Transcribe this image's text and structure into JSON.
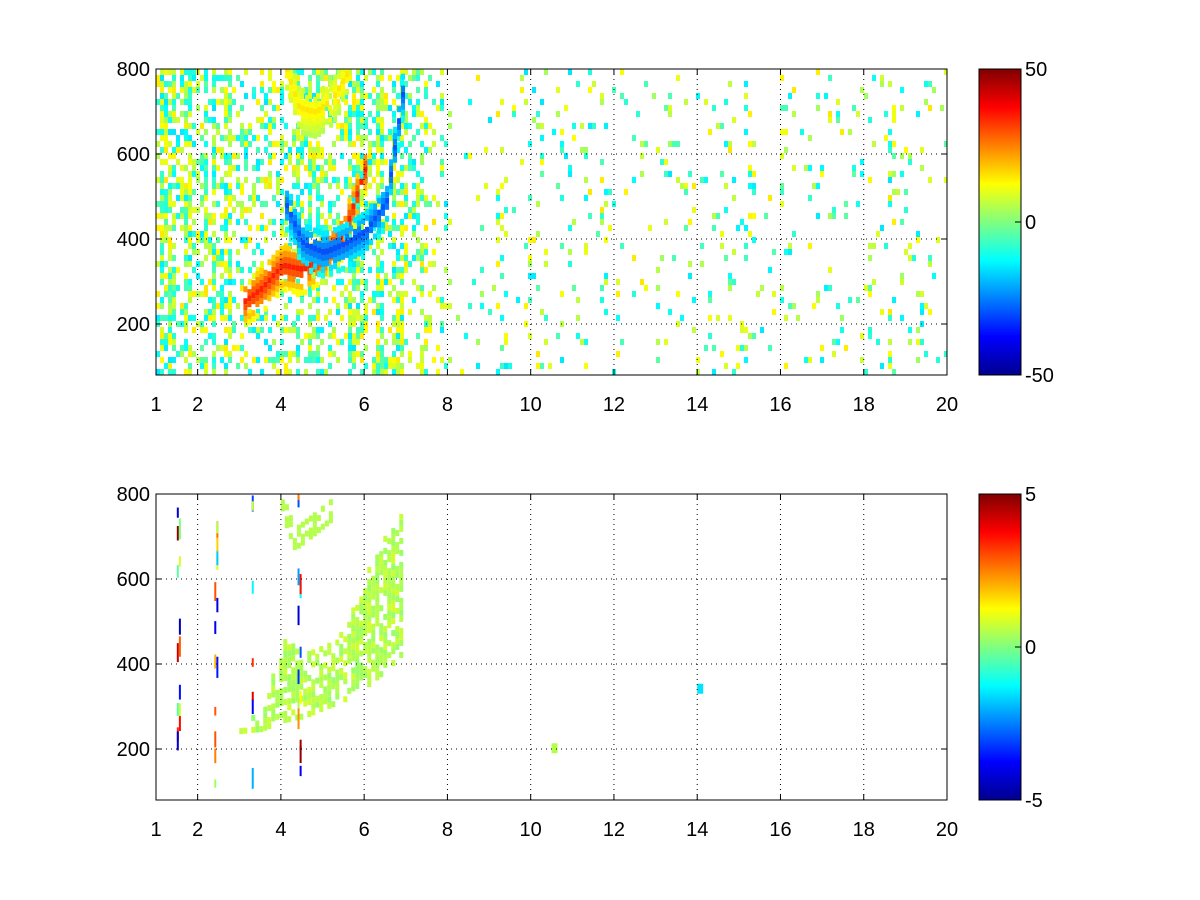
{
  "chart_data": [
    {
      "type": "heatmap",
      "title": "",
      "xlabel": "",
      "ylabel": "",
      "xlim": [
        1,
        20
      ],
      "ylim": [
        80,
        800
      ],
      "x_ticks": [
        "1",
        "2",
        "4",
        "6",
        "8",
        "10",
        "12",
        "14",
        "16",
        "18",
        "20"
      ],
      "x_tick_values": [
        1,
        2,
        4,
        6,
        8,
        10,
        12,
        14,
        16,
        18,
        20
      ],
      "y_ticks": [
        "200",
        "400",
        "600",
        "800"
      ],
      "y_tick_values": [
        200,
        400,
        600,
        800
      ],
      "grid": true,
      "grid_style": "dotted",
      "colormap": "jet",
      "colorbar": {
        "ticks": [
          "50",
          "0",
          "-50"
        ],
        "tick_values": [
          50,
          0,
          -50
        ],
        "clim": [
          -50,
          50
        ],
        "position": "right"
      },
      "features": [
        {
          "kind": "arc",
          "x": [
            3.1,
            3.5,
            4.0,
            4.5,
            5.0,
            5.5,
            6.0
          ],
          "y": [
            245,
            275,
            330,
            320,
            350,
            410,
            560
          ],
          "value": 35
        },
        {
          "kind": "arc",
          "x": [
            4.1,
            4.5,
            5.0,
            5.5,
            6.0,
            6.5,
            6.9
          ],
          "y": [
            470,
            380,
            360,
            380,
            410,
            480,
            740
          ],
          "value": -30
        },
        {
          "kind": "arc",
          "x": [
            4.1,
            4.4,
            4.8,
            5.2,
            5.6
          ],
          "y": [
            790,
            700,
            690,
            720,
            790
          ],
          "value": 15
        }
      ],
      "noise": "vertical streaks of values between -15 and 15 across x = 1 to 20"
    },
    {
      "type": "heatmap",
      "title": "",
      "xlabel": "",
      "ylabel": "",
      "xlim": [
        1,
        20
      ],
      "ylim": [
        80,
        800
      ],
      "x_ticks": [
        "1",
        "2",
        "4",
        "6",
        "8",
        "10",
        "12",
        "14",
        "16",
        "18",
        "20"
      ],
      "x_tick_values": [
        1,
        2,
        4,
        6,
        8,
        10,
        12,
        14,
        16,
        18,
        20
      ],
      "y_ticks": [
        "200",
        "400",
        "600",
        "800"
      ],
      "y_tick_values": [
        200,
        400,
        600,
        800
      ],
      "grid": true,
      "grid_style": "dotted",
      "colormap": "jet",
      "colorbar": {
        "ticks": [
          "5",
          "0",
          "-5"
        ],
        "tick_values": [
          5,
          0,
          -5
        ],
        "clim": [
          -5,
          5
        ],
        "position": "right"
      },
      "features": [
        {
          "kind": "region",
          "x": [
            3.0,
            3.5,
            4.0,
            4.5,
            5.0,
            5.5,
            6.0,
            6.5,
            6.9
          ],
          "y_low": [
            235,
            240,
            260,
            270,
            290,
            310,
            340,
            380,
            420
          ],
          "y_high": [
            250,
            280,
            450,
            420,
            430,
            470,
            600,
            700,
            750
          ],
          "value": 0.5
        },
        {
          "kind": "arc",
          "x": [
            4.0,
            4.3,
            4.7,
            5.2
          ],
          "y": [
            770,
            690,
            720,
            760
          ],
          "value": 0.5
        },
        {
          "kind": "spot",
          "x": 14.0,
          "y": 330,
          "value": -1.5
        },
        {
          "kind": "spot",
          "x": 10.5,
          "y": 190,
          "value": 0.5
        }
      ],
      "noise": "sparse isolated outlier pixels near x = 1.5, 2.4 and 4.4"
    }
  ]
}
